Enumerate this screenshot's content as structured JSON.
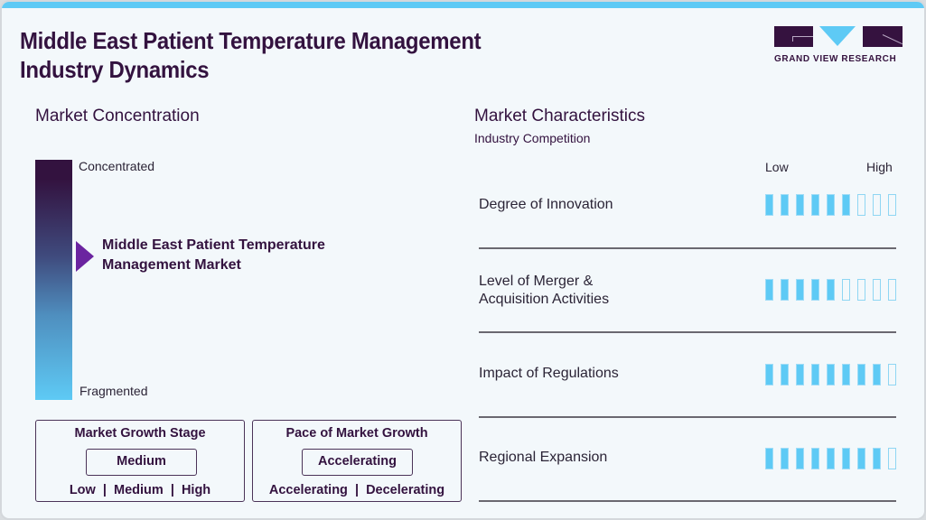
{
  "header": {
    "title_line1": "Middle East Patient Temperature Management",
    "title_line2": "Industry Dynamics",
    "logo_text": "GRAND VIEW RESEARCH"
  },
  "colors": {
    "accent_cyan": "#5ecaf5",
    "brand_purple": "#33123f",
    "arrow_purple": "#6b24a0",
    "background": "#f3f8fb"
  },
  "market_concentration": {
    "heading": "Market Concentration",
    "top_label": "Concentrated",
    "bottom_label": "Fragmented",
    "marker_line1": "Middle East Patient Temperature",
    "marker_line2": "Management Market"
  },
  "growth_stage": {
    "heading": "Market Growth Stage",
    "value": "Medium",
    "options": "Low  |  Medium  |  High"
  },
  "growth_pace": {
    "heading": "Pace of Market Growth",
    "value": "Accelerating",
    "options": "Accelerating  |  Decelerating"
  },
  "market_characteristics": {
    "heading": "Market Characteristics",
    "subheading": "Industry Competition",
    "scale_low": "Low",
    "scale_high": "High",
    "scale_max": 9,
    "rows": [
      {
        "label_line1": "Degree of Innovation",
        "label_line2": "",
        "filled": 6
      },
      {
        "label_line1": "Level of Merger &",
        "label_line2": "Acquisition Activities",
        "filled": 5
      },
      {
        "label_line1": "Impact of Regulations",
        "label_line2": "",
        "filled": 8
      },
      {
        "label_line1": "Regional Expansion",
        "label_line2": "",
        "filled": 8
      }
    ]
  }
}
